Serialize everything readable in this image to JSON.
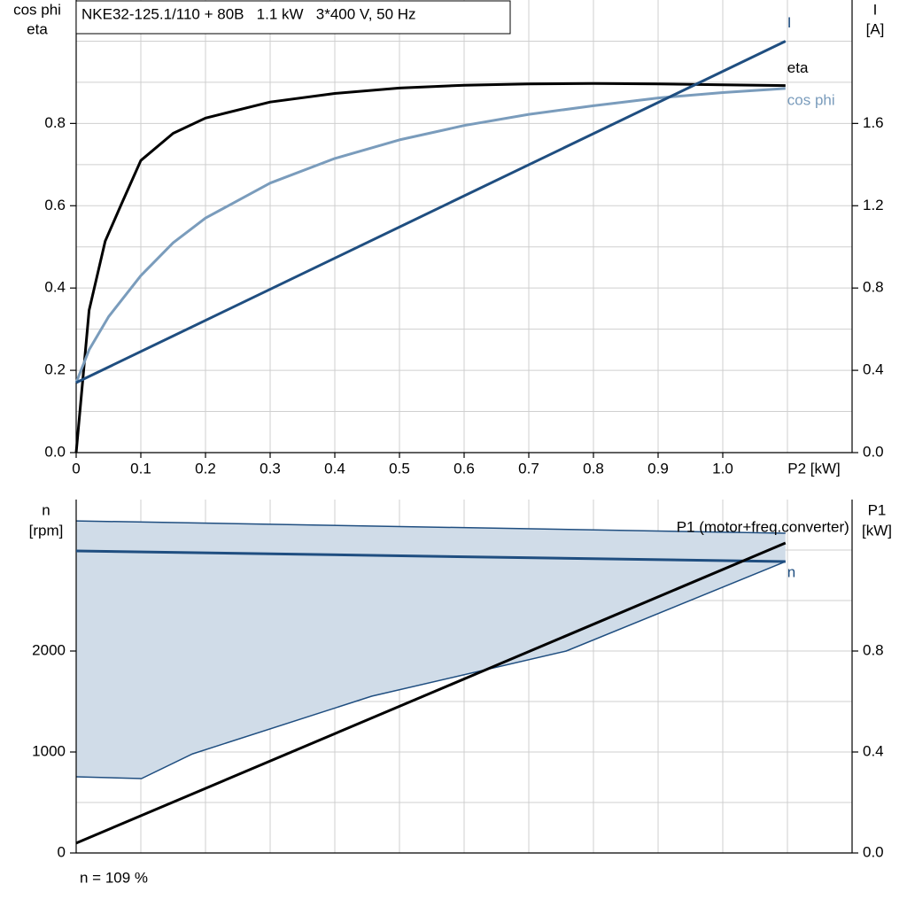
{
  "chart_data": [
    {
      "type": "line",
      "title": "NKE32-125.1/110 + 80B   1.1 kW   3*400 V, 50 Hz",
      "ylabel": [
        "cos phi",
        "eta"
      ],
      "y2label": [
        "I",
        "[A]"
      ],
      "xlabel": "P2 [kW]",
      "xlim": [
        0,
        1.2
      ],
      "xticks": [
        0,
        0.1,
        0.2,
        0.3,
        0.4,
        0.5,
        0.6,
        0.7,
        0.8,
        0.9,
        {
          "value": 1,
          "label": "1.0"
        }
      ],
      "xgrid": [
        0.1,
        0.2,
        0.3,
        0.4,
        0.5,
        0.6,
        0.7,
        0.8,
        0.9,
        1.0,
        1.1
      ],
      "ylim": [
        0,
        1.1
      ],
      "yticks": [
        {
          "value": 0,
          "label": "0.0"
        },
        0.2,
        0.4,
        0.6,
        0.8
      ],
      "ygrid": [
        0.1,
        0.2,
        0.3,
        0.4,
        0.5,
        0.6,
        0.7,
        0.8,
        0.9,
        1.0
      ],
      "y2lim": [
        0,
        2.2
      ],
      "y2ticks": [
        {
          "value": 0,
          "label": "0.0"
        },
        0.4,
        0.8,
        1.2,
        1.6
      ],
      "series": [
        {
          "name": "eta",
          "color": "#000000",
          "x": [
            0,
            0.02,
            0.045,
            0.07,
            0.1,
            0.15,
            0.2,
            0.3,
            0.4,
            0.5,
            0.6,
            0.7,
            0.8,
            0.9,
            1.0,
            1.097
          ],
          "values": [
            0,
            0.346,
            0.514,
            0.604,
            0.71,
            0.776,
            0.813,
            0.852,
            0.873,
            0.886,
            0.893,
            0.896,
            0.897,
            0.896,
            0.894,
            0.892
          ]
        },
        {
          "name": "cos phi",
          "color": "#7a9cbc",
          "x": [
            0,
            0.02,
            0.05,
            0.1,
            0.15,
            0.2,
            0.3,
            0.4,
            0.5,
            0.6,
            0.7,
            0.8,
            0.9,
            1.0,
            1.097
          ],
          "values": [
            0.17,
            0.25,
            0.33,
            0.43,
            0.51,
            0.57,
            0.655,
            0.715,
            0.76,
            0.795,
            0.822,
            0.843,
            0.862,
            0.875,
            0.885
          ]
        },
        {
          "name": "I",
          "color": "#1f4e80",
          "axis": "y2",
          "x": [
            0,
            1.097
          ],
          "values": [
            0.34,
            2.0
          ]
        }
      ]
    },
    {
      "type": "line",
      "ylabel": [
        "n",
        "[rpm]"
      ],
      "y2label": [
        "P1",
        "[kW]"
      ],
      "annotation": "n = 109 %",
      "xlim": [
        0,
        1.2
      ],
      "xgrid": [
        0.1,
        0.2,
        0.3,
        0.4,
        0.5,
        0.6,
        0.7,
        0.8,
        0.9,
        1.0,
        1.1
      ],
      "ylim": [
        0,
        3500
      ],
      "yticks": [
        0,
        1000,
        2000
      ],
      "ygrid": [
        500,
        1000,
        1500,
        2000,
        2500,
        3000
      ],
      "y2lim": [
        0,
        1.4
      ],
      "y2ticks": [
        {
          "value": 0,
          "label": "0.0"
        },
        0.4,
        0.8
      ],
      "band": {
        "color": "#d0dce8",
        "edge": "#1f4e80",
        "upper": {
          "x": [
            0,
            1.097
          ],
          "values": [
            3289,
            3167
          ]
        },
        "lower": {
          "x": [
            0,
            0.101,
            0.18,
            0.457,
            0.758,
            1.097
          ],
          "values": [
            754,
            737,
            982,
            1553,
            2000,
            2886
          ]
        }
      },
      "series": [
        {
          "name": "n",
          "color": "#1f4e80",
          "x": [
            0,
            1.097
          ],
          "values": [
            2991,
            2886
          ]
        },
        {
          "name": "P1 (motor+freq.converter)",
          "color": "#000000",
          "axis": "y2",
          "x": [
            0,
            1.097
          ],
          "values": [
            0.039,
            1.228
          ]
        }
      ]
    }
  ]
}
